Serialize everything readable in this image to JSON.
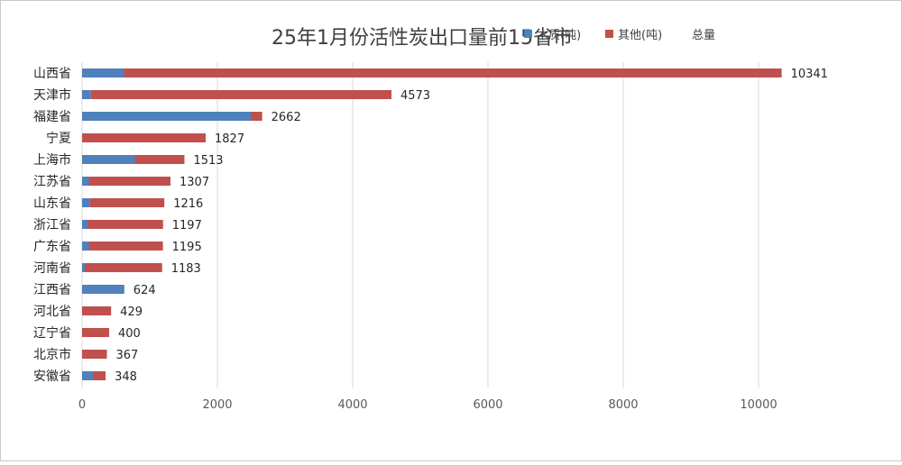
{
  "chart_data": {
    "type": "bar",
    "orientation": "horizontal",
    "stacked": true,
    "title": "25年1月份活性炭出口量前15省市",
    "categories": [
      "山西省",
      "天津市",
      "福建省",
      "宁夏",
      "上海市",
      "江苏省",
      "山东省",
      "浙江省",
      "广东省",
      "河南省",
      "江西省",
      "河北省",
      "辽宁省",
      "北京市",
      "安徽省"
    ],
    "series": [
      {
        "name": "木质(吨)",
        "color": "#4f81bd",
        "values": [
          620,
          130,
          2500,
          0,
          780,
          100,
          110,
          80,
          100,
          40,
          624,
          0,
          0,
          0,
          160
        ]
      },
      {
        "name": "其他(吨)",
        "color": "#c0504d",
        "values": [
          9721,
          4443,
          162,
          1827,
          733,
          1207,
          1106,
          1117,
          1095,
          1143,
          0,
          429,
          400,
          367,
          188
        ]
      }
    ],
    "totals": {
      "name": "总量",
      "values": [
        10341,
        4573,
        2662,
        1827,
        1513,
        1307,
        1216,
        1197,
        1195,
        1183,
        624,
        429,
        400,
        367,
        348
      ]
    },
    "xlim": [
      0,
      10800
    ],
    "xticks": [
      0,
      2000,
      4000,
      6000,
      8000,
      10000
    ],
    "grid": true,
    "legend_position": "top-right"
  }
}
